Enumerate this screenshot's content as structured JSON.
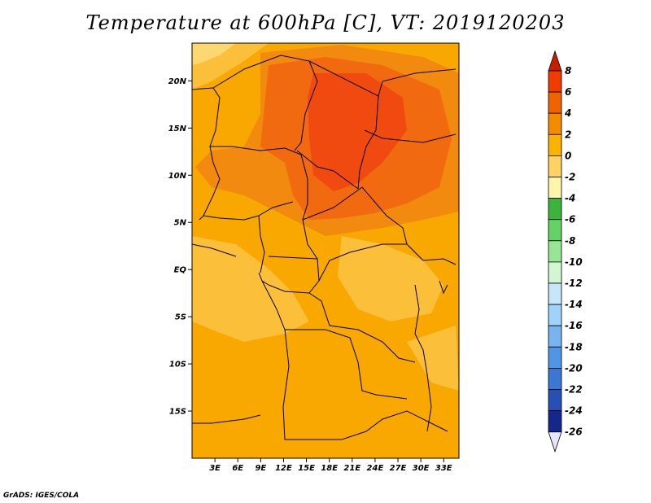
{
  "title": "Temperature at 600hPa [C], VT: 2019120203",
  "credit": "GrADS: IGES/COLA",
  "map": {
    "lon_range": [
      0,
      35
    ],
    "lat_range": [
      -20,
      24
    ],
    "lat_ticks": [
      {
        "value": 20,
        "label": "20N"
      },
      {
        "value": 15,
        "label": "15N"
      },
      {
        "value": 10,
        "label": "10N"
      },
      {
        "value": 5,
        "label": "5N"
      },
      {
        "value": 0,
        "label": "EQ"
      },
      {
        "value": -5,
        "label": "5S"
      },
      {
        "value": -10,
        "label": "10S"
      },
      {
        "value": -15,
        "label": "15S"
      }
    ],
    "lon_ticks": [
      {
        "value": 3,
        "label": "3E"
      },
      {
        "value": 6,
        "label": "6E"
      },
      {
        "value": 9,
        "label": "9E"
      },
      {
        "value": 12,
        "label": "12E"
      },
      {
        "value": 15,
        "label": "15E"
      },
      {
        "value": 18,
        "label": "18E"
      },
      {
        "value": 21,
        "label": "21E"
      },
      {
        "value": 24,
        "label": "24E"
      },
      {
        "value": 27,
        "label": "27E"
      },
      {
        "value": 30,
        "label": "30E"
      },
      {
        "value": 33,
        "label": "33E"
      }
    ]
  },
  "colorbar": {
    "labels": [
      "8",
      "6",
      "4",
      "2",
      "0",
      "-2",
      "-4",
      "-6",
      "-8",
      "-10",
      "-12",
      "-14",
      "-16",
      "-18",
      "-20",
      "-22",
      "-24",
      "-26"
    ],
    "colors": [
      "#c81e00",
      "#f03c00",
      "#f06400",
      "#f58c00",
      "#fab400",
      "#ffd264",
      "#fff5aa",
      "#3cb43c",
      "#64d264",
      "#96e696",
      "#d2f5d2",
      "#c8e6fa",
      "#a0d2fa",
      "#78b4f0",
      "#5096e6",
      "#3c78d2",
      "#2850b4",
      "#14288c",
      "#0a0a64",
      "#e6e6fa"
    ]
  },
  "fill": {
    "base": "#f8a800",
    "lighter": "#fbbf3a",
    "warm": "#f28a10",
    "hot": "#f26a10",
    "hottest": "#f04a10",
    "cool": "#fdd870"
  }
}
